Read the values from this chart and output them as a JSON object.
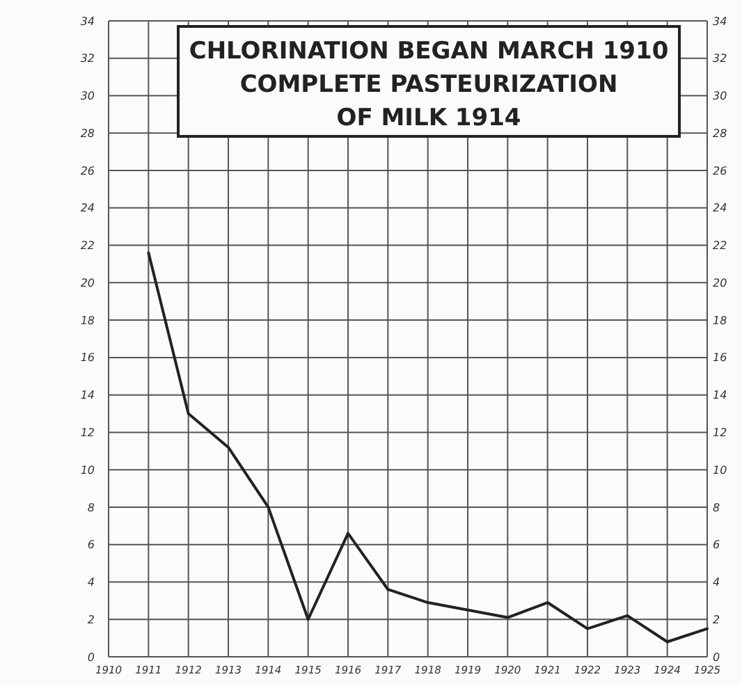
{
  "chart_data": {
    "type": "line",
    "title": "CHLORINATION BEGAN MARCH 1910\nCOMPLETE PASTEURIZATION\nOF MILK 1914",
    "categories": [
      "1910",
      "1911",
      "1912",
      "1913",
      "1914",
      "1915",
      "1916",
      "1917",
      "1918",
      "1919",
      "1920",
      "1921",
      "1922",
      "1923",
      "1924",
      "1925"
    ],
    "series": [
      {
        "color": "#222222",
        "values": [
          null,
          21.6,
          13.0,
          11.2,
          8.0,
          2.0,
          6.6,
          3.6,
          2.9,
          2.5,
          2.1,
          2.9,
          1.5,
          2.2,
          0.8,
          1.5
        ]
      }
    ],
    "ylim": [
      0,
      34
    ],
    "yticks": [
      0,
      2,
      4,
      6,
      8,
      10,
      12,
      14,
      16,
      18,
      20,
      22,
      24,
      26,
      28,
      30,
      32,
      34
    ],
    "y2lim": [
      0,
      34
    ],
    "y2ticks": [
      0,
      2,
      4,
      6,
      8,
      10,
      12,
      14,
      16,
      18,
      20,
      22,
      24,
      26,
      28,
      30,
      32,
      34
    ],
    "grid": true,
    "marker": "none",
    "line_style": "solid"
  }
}
